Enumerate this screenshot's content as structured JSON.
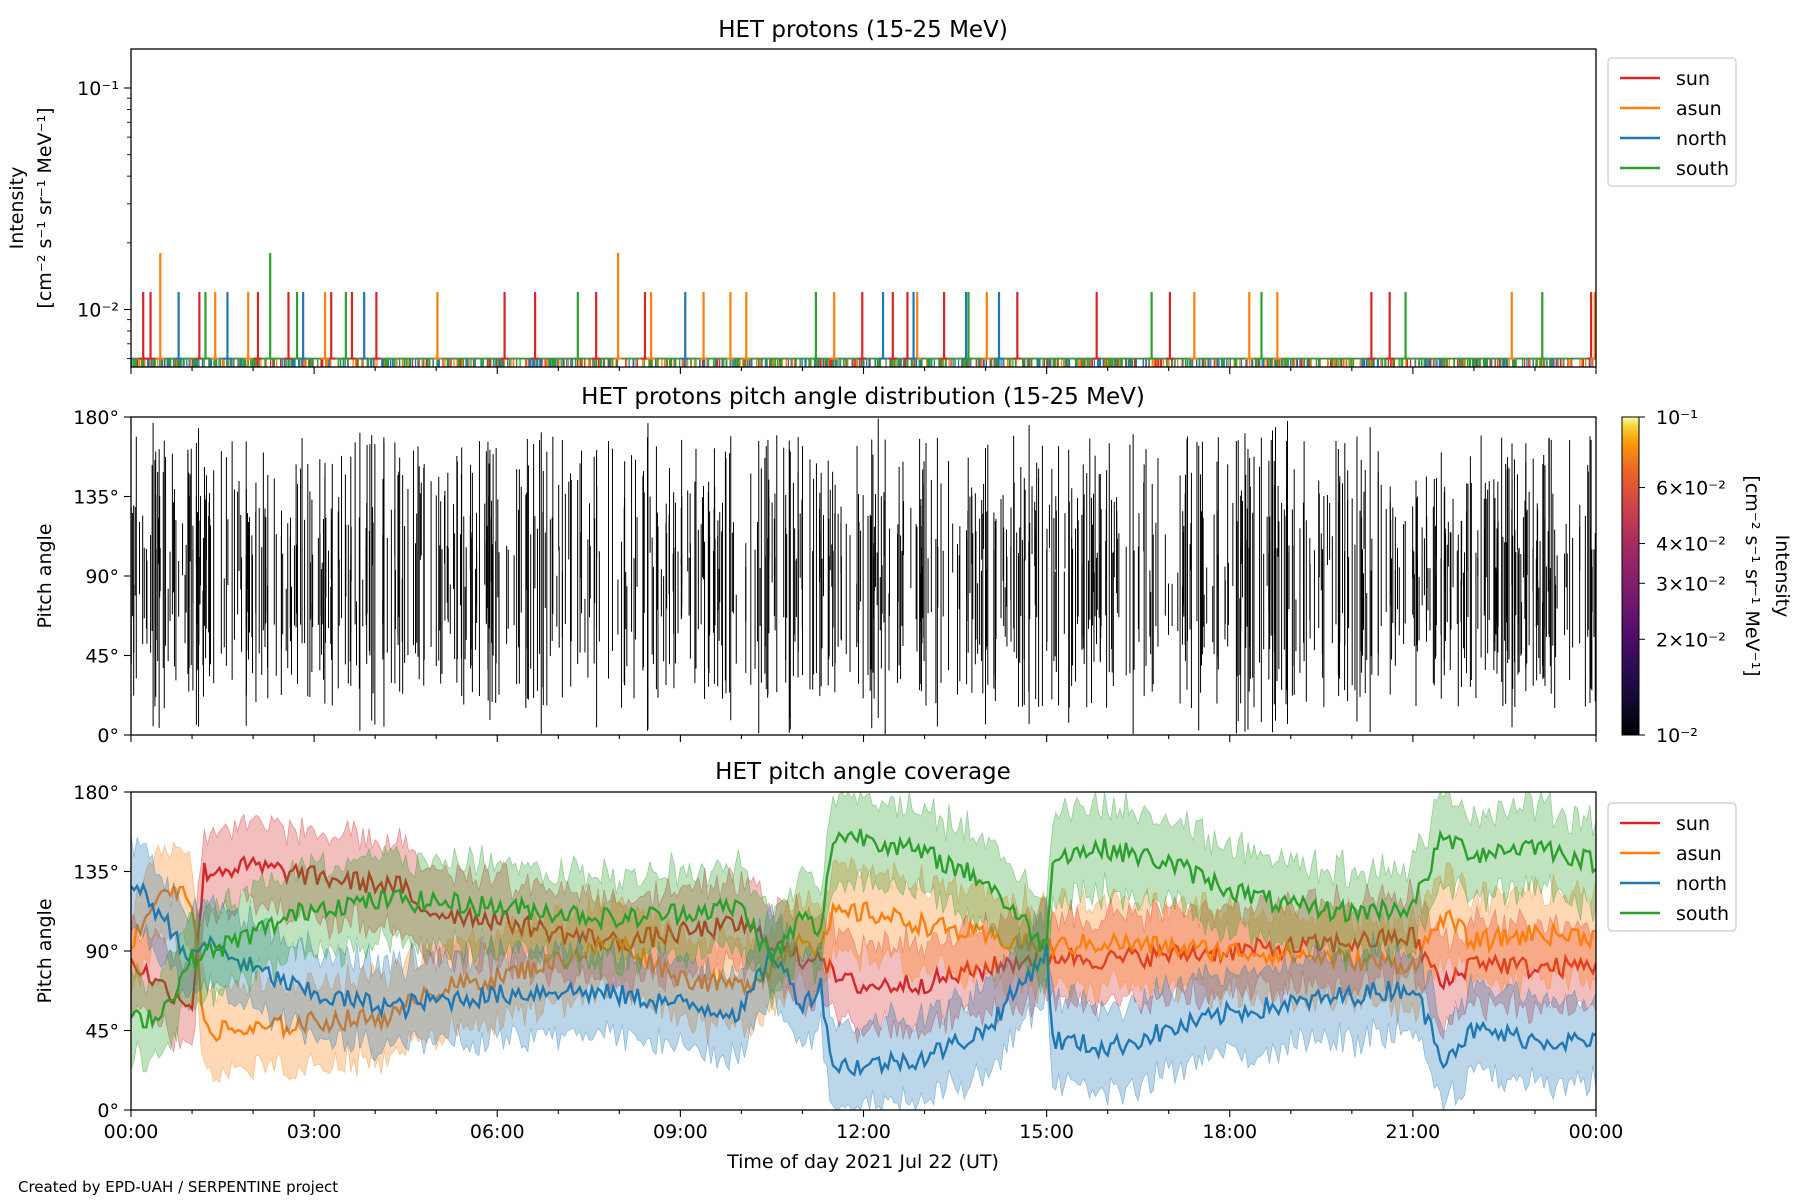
{
  "credit": "Created by EPD-UAH / SERPENTINE project",
  "xlabel": "Time of day 2021 Jul 22 (UT)",
  "x_ticks": [
    "00:00",
    "03:00",
    "06:00",
    "09:00",
    "12:00",
    "15:00",
    "18:00",
    "21:00",
    "00:00"
  ],
  "chart_data": [
    {
      "type": "line",
      "title": "HET protons (15-25 MeV)",
      "ylabel_line1": "Intensity",
      "ylabel_line2": "[cm⁻² s⁻¹ sr⁻¹ MeV⁻¹]",
      "y_scale": "log",
      "ylim": [
        0.0055,
        0.15
      ],
      "y_ticks": [
        {
          "value": 0.1,
          "label": "10⁻¹"
        },
        {
          "value": 0.01,
          "label": "10⁻²"
        }
      ],
      "xlim_hours": [
        0,
        24
      ],
      "legend": [
        "sun",
        "asun",
        "north",
        "south"
      ],
      "legend_position": "outside-right-top",
      "baseline_intensity": 0.006,
      "series": [
        {
          "name": "sun",
          "color": "#d62728",
          "spikes": [
            {
              "t": 0.2,
              "v": 0.012
            },
            {
              "t": 0.32,
              "v": 0.012
            },
            {
              "t": 1.12,
              "v": 0.012
            },
            {
              "t": 2.08,
              "v": 0.012
            },
            {
              "t": 2.58,
              "v": 0.012
            },
            {
              "t": 3.28,
              "v": 0.012
            },
            {
              "t": 3.62,
              "v": 0.012
            },
            {
              "t": 4.02,
              "v": 0.012
            },
            {
              "t": 6.12,
              "v": 0.012
            },
            {
              "t": 6.62,
              "v": 0.012
            },
            {
              "t": 7.62,
              "v": 0.012
            },
            {
              "t": 8.42,
              "v": 0.012
            },
            {
              "t": 11.98,
              "v": 0.012
            },
            {
              "t": 12.48,
              "v": 0.012
            },
            {
              "t": 12.72,
              "v": 0.012
            },
            {
              "t": 13.32,
              "v": 0.012
            },
            {
              "t": 14.52,
              "v": 0.012
            },
            {
              "t": 15.82,
              "v": 0.012
            },
            {
              "t": 17.02,
              "v": 0.012
            },
            {
              "t": 20.32,
              "v": 0.012
            },
            {
              "t": 20.62,
              "v": 0.012
            },
            {
              "t": 23.92,
              "v": 0.012
            }
          ]
        },
        {
          "name": "asun",
          "color": "#ff7f0e",
          "spikes": [
            {
              "t": 0.48,
              "v": 0.018
            },
            {
              "t": 1.38,
              "v": 0.012
            },
            {
              "t": 1.92,
              "v": 0.012
            },
            {
              "t": 3.18,
              "v": 0.012
            },
            {
              "t": 5.02,
              "v": 0.012
            },
            {
              "t": 7.98,
              "v": 0.018
            },
            {
              "t": 8.52,
              "v": 0.012
            },
            {
              "t": 9.38,
              "v": 0.012
            },
            {
              "t": 9.82,
              "v": 0.012
            },
            {
              "t": 10.08,
              "v": 0.012
            },
            {
              "t": 11.52,
              "v": 0.012
            },
            {
              "t": 12.88,
              "v": 0.012
            },
            {
              "t": 14.02,
              "v": 0.012
            },
            {
              "t": 17.42,
              "v": 0.012
            },
            {
              "t": 18.32,
              "v": 0.012
            },
            {
              "t": 18.78,
              "v": 0.012
            },
            {
              "t": 22.62,
              "v": 0.012
            },
            {
              "t": 23.98,
              "v": 0.012
            }
          ]
        },
        {
          "name": "north",
          "color": "#1f77b4",
          "spikes": [
            {
              "t": 0.78,
              "v": 0.012
            },
            {
              "t": 1.58,
              "v": 0.012
            },
            {
              "t": 2.82,
              "v": 0.012
            },
            {
              "t": 3.82,
              "v": 0.012
            },
            {
              "t": 9.08,
              "v": 0.012
            },
            {
              "t": 12.32,
              "v": 0.012
            },
            {
              "t": 12.82,
              "v": 0.012
            },
            {
              "t": 13.68,
              "v": 0.012
            },
            {
              "t": 14.22,
              "v": 0.012
            }
          ]
        },
        {
          "name": "south",
          "color": "#2ca02c",
          "spikes": [
            {
              "t": 1.22,
              "v": 0.012
            },
            {
              "t": 2.28,
              "v": 0.018
            },
            {
              "t": 2.72,
              "v": 0.012
            },
            {
              "t": 3.52,
              "v": 0.012
            },
            {
              "t": 7.32,
              "v": 0.012
            },
            {
              "t": 11.22,
              "v": 0.012
            },
            {
              "t": 13.72,
              "v": 0.012
            },
            {
              "t": 16.72,
              "v": 0.012
            },
            {
              "t": 18.52,
              "v": 0.012
            },
            {
              "t": 20.88,
              "v": 0.012
            },
            {
              "t": 23.12,
              "v": 0.012
            }
          ]
        }
      ]
    },
    {
      "type": "heatmap",
      "title": "HET protons pitch angle distribution (15-25 MeV)",
      "ylabel": "Pitch angle",
      "ylim": [
        0,
        180
      ],
      "y_ticks": [
        "0°",
        "45°",
        "90°",
        "135°",
        "180°"
      ],
      "y_tick_values": [
        0,
        45,
        90,
        135,
        180
      ],
      "xlim_hours": [
        0,
        24
      ],
      "colorbar": {
        "label_line1": "Intensity",
        "label_line2": "[cm⁻² s⁻¹ sr⁻¹ MeV⁻¹]",
        "scale": "log",
        "range": [
          0.01,
          0.1
        ],
        "colormap": "inferno",
        "ticks": [
          {
            "value": 0.1,
            "label": "10⁻¹"
          },
          {
            "value": 0.06,
            "label": "6×10⁻²"
          },
          {
            "value": 0.04,
            "label": "4×10⁻²"
          },
          {
            "value": 0.03,
            "label": "3×10⁻²"
          },
          {
            "value": 0.02,
            "label": "2×10⁻²"
          },
          {
            "value": 0.01,
            "label": "10⁻²"
          }
        ]
      },
      "description_of_marks": "thin black vertical strokes spanning the angular coverage of each sample"
    },
    {
      "type": "area",
      "title": "HET pitch angle coverage",
      "ylabel": "Pitch angle",
      "ylim": [
        0,
        180
      ],
      "y_ticks": [
        "0°",
        "45°",
        "90°",
        "135°",
        "180°"
      ],
      "y_tick_values": [
        0,
        45,
        90,
        135,
        180
      ],
      "xlim_hours": [
        0,
        24
      ],
      "legend": [
        "sun",
        "asun",
        "north",
        "south"
      ],
      "legend_position": "outside-right-top",
      "series": [
        {
          "name": "sun",
          "color": "#d62728",
          "halfwidth": 25,
          "t": [
            0,
            0.5,
            1.0,
            1.2,
            2.0,
            3.0,
            4.0,
            4.5,
            4.6,
            5.0,
            6.0,
            7.0,
            8.0,
            9.0,
            10.0,
            10.5,
            11.0,
            11.3,
            11.5,
            12.0,
            13.0,
            14.0,
            15.0,
            16.0,
            17.0,
            18.0,
            19.0,
            20.0,
            21.0,
            21.5,
            22.0,
            23.0,
            24.0
          ],
          "y": [
            85,
            70,
            60,
            135,
            138,
            132,
            128,
            126,
            115,
            112,
            108,
            100,
            95,
            100,
            105,
            95,
            85,
            90,
            75,
            70,
            72,
            80,
            88,
            85,
            88,
            90,
            92,
            95,
            98,
            70,
            85,
            80,
            82
          ]
        },
        {
          "name": "asun",
          "color": "#ff7f0e",
          "halfwidth": 25,
          "t": [
            0,
            0.5,
            1.0,
            1.2,
            2.0,
            3.0,
            4.0,
            4.5,
            4.6,
            5.0,
            6.0,
            7.0,
            8.0,
            9.0,
            10.0,
            10.5,
            11.0,
            11.3,
            11.5,
            12.0,
            13.0,
            14.0,
            15.0,
            16.0,
            17.0,
            18.0,
            19.0,
            20.0,
            21.0,
            21.5,
            22.0,
            23.0,
            24.0
          ],
          "y": [
            95,
            125,
            120,
            45,
            45,
            50,
            52,
            55,
            65,
            68,
            75,
            85,
            95,
            75,
            70,
            80,
            100,
            90,
            110,
            112,
            105,
            98,
            92,
            95,
            92,
            90,
            88,
            85,
            82,
            110,
            95,
            100,
            98
          ]
        },
        {
          "name": "north",
          "color": "#1f77b4",
          "halfwidth": 25,
          "t": [
            0,
            0.5,
            1.0,
            1.2,
            2.0,
            3.0,
            4.0,
            4.5,
            4.6,
            5.0,
            6.0,
            7.0,
            8.0,
            9.0,
            10.0,
            10.5,
            11.0,
            11.3,
            11.5,
            12.0,
            13.0,
            14.0,
            15.0,
            15.1,
            16.0,
            17.0,
            18.0,
            19.0,
            20.0,
            21.0,
            21.5,
            22.0,
            23.0,
            24.0
          ],
          "y": [
            130,
            110,
            85,
            95,
            80,
            65,
            60,
            58,
            60,
            62,
            65,
            68,
            65,
            60,
            55,
            90,
            60,
            70,
            25,
            25,
            30,
            45,
            90,
            40,
            35,
            45,
            55,
            60,
            65,
            70,
            30,
            45,
            40,
            38
          ]
        },
        {
          "name": "south",
          "color": "#2ca02c",
          "halfwidth": 25,
          "t": [
            0,
            0.5,
            1.0,
            1.2,
            2.0,
            3.0,
            4.0,
            4.5,
            4.6,
            5.0,
            6.0,
            7.0,
            8.0,
            9.0,
            10.0,
            10.5,
            11.0,
            11.3,
            11.5,
            12.0,
            13.0,
            14.0,
            15.0,
            15.1,
            16.0,
            17.0,
            18.0,
            19.0,
            20.0,
            21.0,
            21.5,
            22.0,
            23.0,
            24.0
          ],
          "y": [
            50,
            55,
            85,
            88,
            100,
            115,
            118,
            120,
            118,
            118,
            115,
            112,
            108,
            112,
            115,
            85,
            110,
            100,
            155,
            155,
            145,
            130,
            92,
            145,
            148,
            140,
            125,
            115,
            112,
            115,
            155,
            145,
            150,
            140
          ]
        }
      ]
    }
  ]
}
